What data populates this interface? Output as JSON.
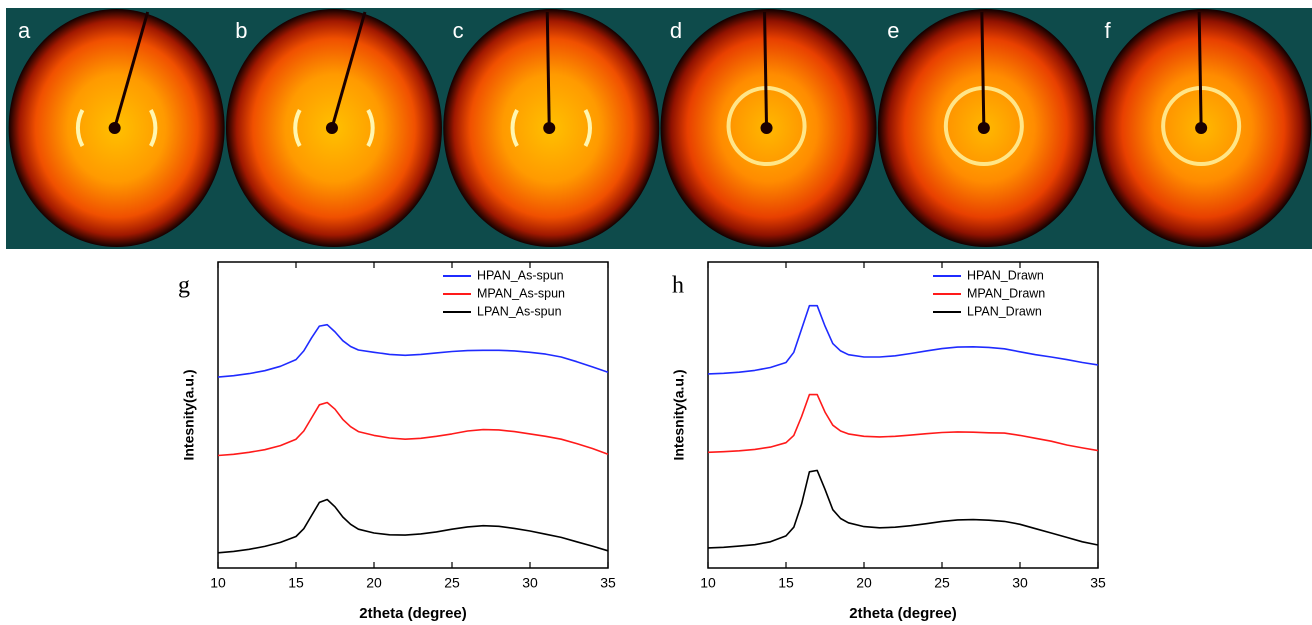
{
  "images": [
    {
      "label": "a"
    },
    {
      "label": "b"
    },
    {
      "label": "c"
    },
    {
      "label": "d"
    },
    {
      "label": "e"
    },
    {
      "label": "f"
    }
  ],
  "chart_data": [
    {
      "type": "line",
      "label": "g",
      "x_label": "2theta (degree)",
      "y_label": "Intesnity(a.u.)",
      "xlim": [
        10,
        35
      ],
      "xticks": [
        10,
        15,
        20,
        25,
        30,
        35
      ],
      "ylim": [
        0,
        10.5
      ],
      "legend": "upper right",
      "x": [
        10,
        11,
        12,
        13,
        14,
        15,
        15.5,
        16,
        16.5,
        17,
        17.5,
        18,
        18.5,
        19,
        20,
        21,
        22,
        23,
        24,
        25,
        26,
        27,
        28,
        29,
        30,
        31,
        32,
        33,
        34,
        35
      ],
      "series": [
        {
          "name": "HPAN_As-spun",
          "color": "#1f2bff",
          "values": [
            6.55,
            6.6,
            6.67,
            6.77,
            6.92,
            7.15,
            7.45,
            7.9,
            8.3,
            8.35,
            8.1,
            7.8,
            7.6,
            7.48,
            7.4,
            7.33,
            7.3,
            7.33,
            7.38,
            7.43,
            7.46,
            7.47,
            7.47,
            7.45,
            7.4,
            7.34,
            7.24,
            7.08,
            6.9,
            6.72
          ]
        },
        {
          "name": "MPAN_As-spun",
          "color": "#ff1a1a",
          "values": [
            3.86,
            3.9,
            3.97,
            4.06,
            4.2,
            4.42,
            4.7,
            5.15,
            5.6,
            5.68,
            5.45,
            5.1,
            4.85,
            4.68,
            4.55,
            4.46,
            4.42,
            4.45,
            4.52,
            4.6,
            4.7,
            4.75,
            4.74,
            4.68,
            4.6,
            4.52,
            4.42,
            4.27,
            4.1,
            3.9
          ]
        },
        {
          "name": "LPAN_As-spun",
          "color": "#000000",
          "values": [
            0.52,
            0.57,
            0.64,
            0.74,
            0.88,
            1.08,
            1.35,
            1.8,
            2.25,
            2.35,
            2.1,
            1.75,
            1.5,
            1.33,
            1.2,
            1.14,
            1.13,
            1.17,
            1.24,
            1.33,
            1.41,
            1.45,
            1.43,
            1.36,
            1.27,
            1.16,
            1.05,
            0.9,
            0.75,
            0.59
          ]
        }
      ]
    },
    {
      "type": "line",
      "label": "h",
      "x_label": "2theta (degree)",
      "y_label": "Intesnity(a.u.)",
      "xlim": [
        10,
        35
      ],
      "xticks": [
        10,
        15,
        20,
        25,
        30,
        35
      ],
      "ylim": [
        0,
        10.5
      ],
      "legend": "upper right",
      "x": [
        10,
        11,
        12,
        13,
        14,
        15,
        15.5,
        16,
        16.5,
        17,
        17.5,
        18,
        18.5,
        19,
        20,
        21,
        22,
        23,
        24,
        25,
        26,
        27,
        28,
        29,
        30,
        31,
        32,
        33,
        34,
        35
      ],
      "series": [
        {
          "name": "HPAN_Drawn",
          "color": "#1f2bff",
          "values": [
            6.66,
            6.68,
            6.72,
            6.78,
            6.88,
            7.05,
            7.4,
            8.2,
            9.0,
            9.0,
            8.3,
            7.7,
            7.45,
            7.32,
            7.24,
            7.24,
            7.28,
            7.36,
            7.45,
            7.53,
            7.58,
            7.59,
            7.57,
            7.52,
            7.42,
            7.32,
            7.24,
            7.15,
            7.05,
            6.97
          ]
        },
        {
          "name": "MPAN_Drawn",
          "color": "#ff1a1a",
          "values": [
            3.97,
            3.99,
            4.02,
            4.07,
            4.15,
            4.3,
            4.55,
            5.2,
            5.95,
            5.95,
            5.35,
            4.9,
            4.7,
            4.6,
            4.52,
            4.5,
            4.52,
            4.56,
            4.61,
            4.65,
            4.67,
            4.66,
            4.64,
            4.63,
            4.55,
            4.45,
            4.35,
            4.22,
            4.12,
            4.03
          ]
        },
        {
          "name": "LPAN_Drawn",
          "color": "#000000",
          "values": [
            0.69,
            0.71,
            0.75,
            0.8,
            0.9,
            1.1,
            1.4,
            2.2,
            3.3,
            3.35,
            2.7,
            2.0,
            1.7,
            1.55,
            1.42,
            1.38,
            1.4,
            1.45,
            1.52,
            1.6,
            1.65,
            1.66,
            1.64,
            1.6,
            1.5,
            1.35,
            1.2,
            1.05,
            0.9,
            0.79
          ]
        }
      ]
    }
  ]
}
